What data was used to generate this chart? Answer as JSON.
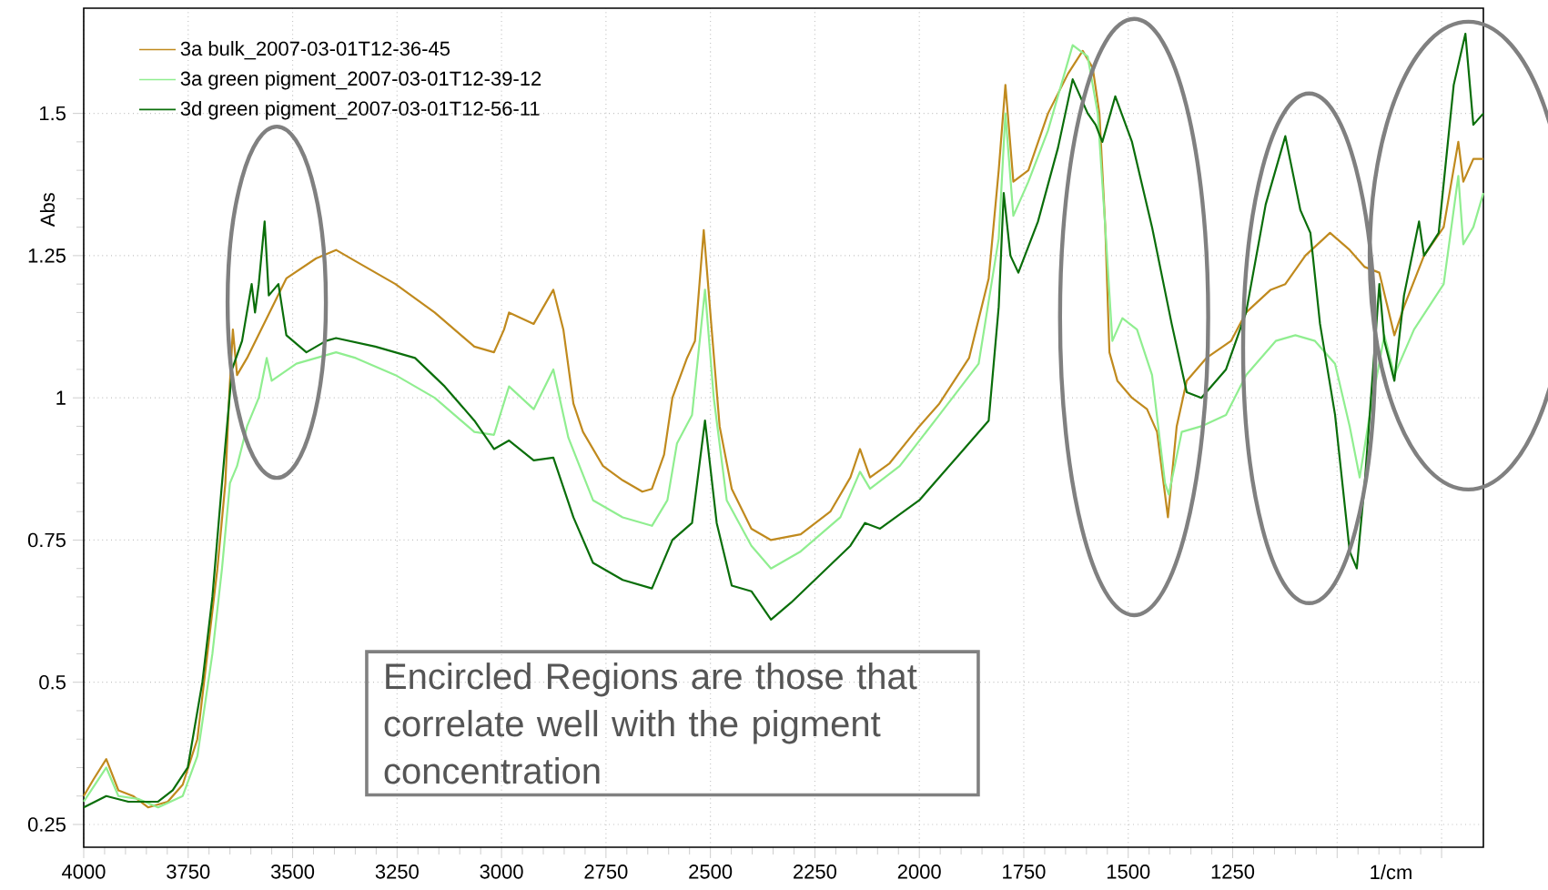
{
  "chart_data": {
    "type": "line",
    "xlabel": "1/cm",
    "ylabel": "Abs",
    "annotations": [
      "Encircled Regions are those that correlate well with the pigment concentration"
    ],
    "xlim": [
      4000,
      650
    ],
    "ylim": [
      0.21,
      1.685
    ],
    "xticks": [
      4000,
      3750,
      3500,
      3250,
      3000,
      2750,
      2500,
      2250,
      2000,
      1750,
      1500,
      1250,
      {
        "value": 1000,
        "label": null
      },
      {
        "value": 750,
        "label": null
      }
    ],
    "yticks": [
      0.25,
      0.5,
      0.75,
      1,
      1.25,
      1.5
    ],
    "grid": true,
    "legend": "top left",
    "marker": "none",
    "line_style": "solid",
    "series": [
      {
        "name": "3a bulk_2007-03-01T12-36-45",
        "color": "#c08a1e",
        "x": [
          4000,
          3976,
          3946,
          3917,
          3882,
          3846,
          3799,
          3763,
          3728,
          3704,
          3680,
          3661,
          3652,
          3643,
          3633,
          3609,
          3562,
          3515,
          3444,
          3396,
          3349,
          3254,
          3160,
          3065,
          3018,
          2994,
          2982,
          2923,
          2876,
          2852,
          2828,
          2805,
          2757,
          2710,
          2663,
          2640,
          2611,
          2591,
          2556,
          2537,
          2516,
          2497,
          2478,
          2449,
          2402,
          2355,
          2284,
          2213,
          2165,
          2142,
          2118,
          2071,
          2000,
          1952,
          1881,
          1834,
          1810,
          1794,
          1775,
          1739,
          1692,
          1644,
          1609,
          1585,
          1569,
          1555,
          1545,
          1526,
          1491,
          1455,
          1431,
          1405,
          1384,
          1360,
          1313,
          1254,
          1218,
          1159,
          1124,
          1076,
          1017,
          970,
          934,
          899,
          863,
          840,
          792,
          745,
          710,
          698,
          674,
          650
        ],
        "values": [
          0.3,
          0.33,
          0.365,
          0.31,
          0.3,
          0.28,
          0.29,
          0.32,
          0.4,
          0.55,
          0.7,
          0.85,
          1.0,
          1.12,
          1.04,
          1.07,
          1.14,
          1.21,
          1.245,
          1.26,
          1.24,
          1.2,
          1.15,
          1.09,
          1.08,
          1.12,
          1.15,
          1.13,
          1.19,
          1.12,
          0.99,
          0.94,
          0.88,
          0.855,
          0.835,
          0.84,
          0.9,
          1.0,
          1.07,
          1.1,
          1.295,
          1.12,
          0.95,
          0.84,
          0.77,
          0.75,
          0.76,
          0.8,
          0.86,
          0.91,
          0.86,
          0.885,
          0.95,
          0.99,
          1.07,
          1.21,
          1.4,
          1.55,
          1.38,
          1.4,
          1.5,
          1.57,
          1.61,
          1.58,
          1.5,
          1.3,
          1.08,
          1.03,
          1.0,
          0.98,
          0.94,
          0.79,
          0.95,
          1.03,
          1.07,
          1.1,
          1.15,
          1.19,
          1.2,
          1.25,
          1.29,
          1.26,
          1.23,
          1.22,
          1.11,
          1.16,
          1.25,
          1.3,
          1.45,
          1.38,
          1.42,
          1.42
        ]
      },
      {
        "name": "3a green pigment_2007-03-01T12-39-12",
        "color": "#90ee90",
        "x": [
          4000,
          3946,
          3917,
          3870,
          3822,
          3763,
          3728,
          3692,
          3669,
          3650,
          3633,
          3609,
          3581,
          3562,
          3550,
          3491,
          3396,
          3349,
          3254,
          3160,
          3065,
          3018,
          2982,
          2923,
          2876,
          2840,
          2781,
          2710,
          2640,
          2603,
          2580,
          2544,
          2513,
          2492,
          2461,
          2402,
          2355,
          2284,
          2189,
          2142,
          2118,
          2047,
          1952,
          1858,
          1810,
          1794,
          1775,
          1739,
          1692,
          1633,
          1597,
          1573,
          1555,
          1538,
          1514,
          1479,
          1443,
          1412,
          1403,
          1372,
          1325,
          1266,
          1218,
          1147,
          1100,
          1053,
          1005,
          970,
          946,
          922,
          887,
          863,
          816,
          745,
          710,
          698,
          674,
          650
        ],
        "values": [
          0.29,
          0.35,
          0.3,
          0.295,
          0.28,
          0.3,
          0.37,
          0.55,
          0.7,
          0.85,
          0.88,
          0.95,
          1.0,
          1.07,
          1.03,
          1.06,
          1.08,
          1.07,
          1.04,
          1.0,
          0.94,
          0.935,
          1.02,
          0.98,
          1.05,
          0.93,
          0.82,
          0.79,
          0.775,
          0.82,
          0.92,
          0.97,
          1.19,
          1.0,
          0.82,
          0.74,
          0.7,
          0.73,
          0.79,
          0.87,
          0.84,
          0.88,
          0.97,
          1.06,
          1.28,
          1.5,
          1.32,
          1.38,
          1.47,
          1.62,
          1.6,
          1.5,
          1.3,
          1.1,
          1.14,
          1.12,
          1.04,
          0.85,
          0.83,
          0.94,
          0.95,
          0.97,
          1.04,
          1.1,
          1.11,
          1.1,
          1.06,
          0.95,
          0.86,
          0.97,
          1.11,
          1.04,
          1.12,
          1.2,
          1.39,
          1.27,
          1.3,
          1.36
        ]
      },
      {
        "name": "3d green pigment_2007-03-01T12-56-11",
        "color": "#0a6e0a",
        "x": [
          4000,
          3946,
          3893,
          3822,
          3787,
          3751,
          3716,
          3692,
          3669,
          3645,
          3621,
          3598,
          3590,
          3581,
          3567,
          3557,
          3534,
          3515,
          3467,
          3420,
          3396,
          3302,
          3207,
          3136,
          3065,
          3018,
          2982,
          2923,
          2876,
          2828,
          2781,
          2710,
          2640,
          2591,
          2544,
          2513,
          2485,
          2449,
          2402,
          2355,
          2307,
          2236,
          2165,
          2130,
          2094,
          2000,
          1905,
          1834,
          1810,
          1798,
          1782,
          1763,
          1716,
          1668,
          1633,
          1597,
          1578,
          1562,
          1531,
          1491,
          1443,
          1396,
          1360,
          1325,
          1266,
          1218,
          1171,
          1124,
          1088,
          1064,
          1041,
          1005,
          970,
          953,
          934,
          899,
          887,
          863,
          840,
          804,
          792,
          757,
          721,
          693,
          674,
          650
        ],
        "values": [
          0.28,
          0.3,
          0.29,
          0.29,
          0.31,
          0.35,
          0.5,
          0.65,
          0.85,
          1.05,
          1.1,
          1.2,
          1.15,
          1.2,
          1.31,
          1.18,
          1.2,
          1.11,
          1.08,
          1.1,
          1.105,
          1.09,
          1.07,
          1.02,
          0.96,
          0.91,
          0.925,
          0.89,
          0.895,
          0.79,
          0.71,
          0.68,
          0.665,
          0.75,
          0.78,
          0.96,
          0.78,
          0.67,
          0.66,
          0.61,
          0.64,
          0.69,
          0.74,
          0.78,
          0.77,
          0.82,
          0.9,
          0.96,
          1.16,
          1.36,
          1.25,
          1.22,
          1.31,
          1.44,
          1.56,
          1.5,
          1.48,
          1.45,
          1.53,
          1.45,
          1.3,
          1.13,
          1.01,
          1.0,
          1.05,
          1.15,
          1.34,
          1.46,
          1.33,
          1.29,
          1.13,
          0.97,
          0.73,
          0.7,
          0.85,
          1.2,
          1.1,
          1.03,
          1.18,
          1.31,
          1.25,
          1.29,
          1.55,
          1.64,
          1.48,
          1.5
        ]
      }
    ]
  }
}
